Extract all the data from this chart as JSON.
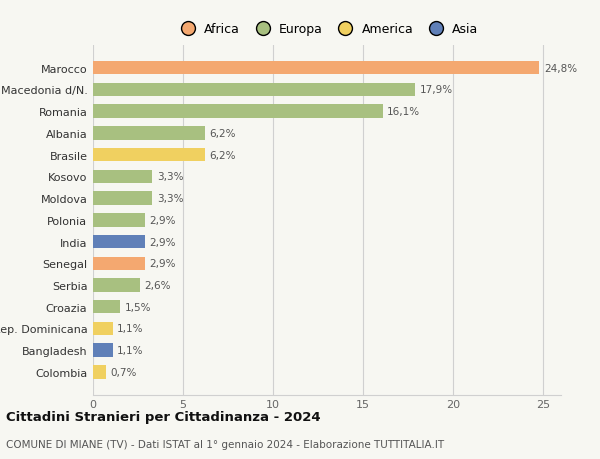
{
  "countries": [
    "Marocco",
    "Macedonia d/N.",
    "Romania",
    "Albania",
    "Brasile",
    "Kosovo",
    "Moldova",
    "Polonia",
    "India",
    "Senegal",
    "Serbia",
    "Croazia",
    "Rep. Dominicana",
    "Bangladesh",
    "Colombia"
  ],
  "values": [
    24.8,
    17.9,
    16.1,
    6.2,
    6.2,
    3.3,
    3.3,
    2.9,
    2.9,
    2.9,
    2.6,
    1.5,
    1.1,
    1.1,
    0.7
  ],
  "labels": [
    "24,8%",
    "17,9%",
    "16,1%",
    "6,2%",
    "6,2%",
    "3,3%",
    "3,3%",
    "2,9%",
    "2,9%",
    "2,9%",
    "2,6%",
    "1,5%",
    "1,1%",
    "1,1%",
    "0,7%"
  ],
  "colors": [
    "#f4a870",
    "#a8c080",
    "#a8c080",
    "#a8c080",
    "#f0d060",
    "#a8c080",
    "#a8c080",
    "#a8c080",
    "#6080b8",
    "#f4a870",
    "#a8c080",
    "#a8c080",
    "#f0d060",
    "#6080b8",
    "#f0d060"
  ],
  "legend": {
    "Africa": "#f4a870",
    "Europa": "#a8c080",
    "America": "#f0d060",
    "Asia": "#6080b8"
  },
  "title": "Cittadini Stranieri per Cittadinanza - 2024",
  "subtitle": "COMUNE DI MIANE (TV) - Dati ISTAT al 1° gennaio 2024 - Elaborazione TUTTITALIA.IT",
  "xlim": [
    0,
    26
  ],
  "xticks": [
    0,
    5,
    10,
    15,
    20,
    25
  ],
  "background_color": "#f7f7f2",
  "bar_height": 0.62,
  "grid_color": "#d0d0d0"
}
